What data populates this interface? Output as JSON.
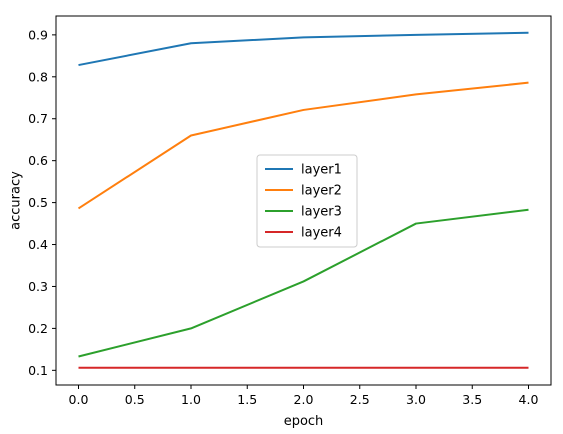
{
  "chart_data": {
    "type": "line",
    "title": "",
    "xlabel": "epoch",
    "ylabel": "accuracy",
    "xlim": [
      -0.2,
      4.2
    ],
    "ylim": [
      0.065,
      0.945
    ],
    "xticks": [
      0.0,
      0.5,
      1.0,
      1.5,
      2.0,
      2.5,
      3.0,
      3.5,
      4.0
    ],
    "xtick_labels": [
      "0.0",
      "0.5",
      "1.0",
      "1.5",
      "2.0",
      "2.5",
      "3.0",
      "3.5",
      "4.0"
    ],
    "yticks": [
      0.1,
      0.2,
      0.3,
      0.4,
      0.5,
      0.6,
      0.7,
      0.8,
      0.9
    ],
    "ytick_labels": [
      "0.1",
      "0.2",
      "0.3",
      "0.4",
      "0.5",
      "0.6",
      "0.7",
      "0.8",
      "0.9"
    ],
    "grid": false,
    "legend_position": "center",
    "x": [
      0,
      1,
      2,
      3,
      4
    ],
    "series": [
      {
        "name": "layer1",
        "color": "#1f77b4",
        "values": [
          0.828,
          0.88,
          0.894,
          0.9,
          0.905
        ]
      },
      {
        "name": "layer2",
        "color": "#ff7f0e",
        "values": [
          0.486,
          0.66,
          0.721,
          0.758,
          0.786
        ]
      },
      {
        "name": "layer3",
        "color": "#2ca02c",
        "values": [
          0.133,
          0.2,
          0.312,
          0.45,
          0.483
        ]
      },
      {
        "name": "layer4",
        "color": "#d62728",
        "values": [
          0.106,
          0.106,
          0.106,
          0.106,
          0.106
        ]
      }
    ]
  }
}
